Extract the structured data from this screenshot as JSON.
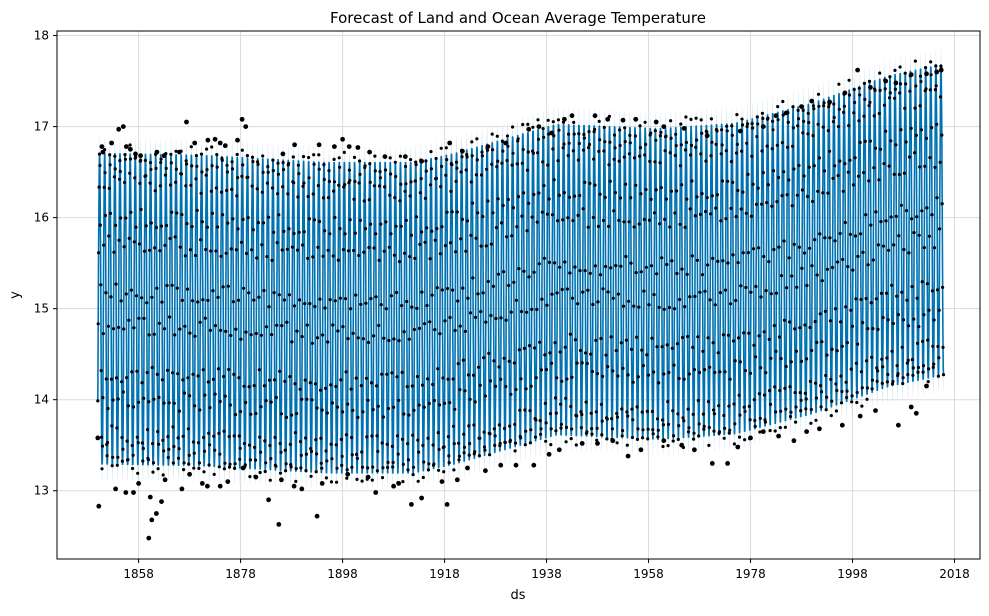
{
  "chart_data": {
    "type": "line",
    "title": "Forecast of Land and Ocean Average Temperature",
    "xlabel": "ds",
    "ylabel": "y",
    "x_range": [
      1842,
      2023
    ],
    "ylim": [
      12.25,
      18.05
    ],
    "x_ticks": [
      {
        "value": 1858,
        "label": "1858"
      },
      {
        "value": 1878,
        "label": "1878"
      },
      {
        "value": 1898,
        "label": "1898"
      },
      {
        "value": 1918,
        "label": "1918"
      },
      {
        "value": 1938,
        "label": "1938"
      },
      {
        "value": 1958,
        "label": "1958"
      },
      {
        "value": 1978,
        "label": "1978"
      },
      {
        "value": 1998,
        "label": "1998"
      },
      {
        "value": 2018,
        "label": "2018"
      }
    ],
    "y_ticks": [
      {
        "value": 13,
        "label": "13"
      },
      {
        "value": 14,
        "label": "14"
      },
      {
        "value": 15,
        "label": "15"
      },
      {
        "value": 16,
        "label": "16"
      },
      {
        "value": 17,
        "label": "17"
      },
      {
        "value": 18,
        "label": "18"
      }
    ],
    "grid": true,
    "time_span": {
      "start": 1850.0,
      "end": 2015.9
    },
    "series": [
      {
        "kind": "forecast",
        "color": "#0072B2",
        "trend": [
          [
            1850,
            15.0
          ],
          [
            1870,
            14.98
          ],
          [
            1895,
            14.9
          ],
          [
            1912,
            14.9
          ],
          [
            1920,
            15.0
          ],
          [
            1940,
            15.32
          ],
          [
            1960,
            15.27
          ],
          [
            1975,
            15.33
          ],
          [
            1990,
            15.55
          ],
          [
            2005,
            15.85
          ],
          [
            2015.9,
            15.98
          ]
        ],
        "seasonal_amplitude": 1.72
      },
      {
        "kind": "uncertainty-interval",
        "color": "#0072B2",
        "opacity": 0.2,
        "half_width": 0.18
      },
      {
        "kind": "observed",
        "color": "#000000",
        "high_outliers": [
          [
            1850.8,
            16.78
          ],
          [
            1851.0,
            16.72
          ],
          [
            1852.7,
            16.82
          ],
          [
            1854.1,
            16.97
          ],
          [
            1855.0,
            17.0
          ],
          [
            1855.6,
            16.78
          ],
          [
            1856.4,
            16.75
          ],
          [
            1857.4,
            16.7
          ],
          [
            1858.4,
            16.68
          ],
          [
            1861.6,
            16.72
          ],
          [
            1863.0,
            16.68
          ],
          [
            1866.0,
            16.72
          ],
          [
            1867.4,
            17.05
          ],
          [
            1869.0,
            16.82
          ],
          [
            1871.6,
            16.85
          ],
          [
            1873.0,
            16.86
          ],
          [
            1874.0,
            16.82
          ],
          [
            1875.0,
            16.79
          ],
          [
            1877.4,
            16.85
          ],
          [
            1878.3,
            17.08
          ],
          [
            1879.0,
            17.0
          ],
          [
            1886.3,
            16.7
          ],
          [
            1888.6,
            16.8
          ],
          [
            1893.4,
            16.8
          ],
          [
            1896.4,
            16.78
          ],
          [
            1898.0,
            16.86
          ],
          [
            1899.3,
            16.78
          ],
          [
            1901.0,
            16.77
          ],
          [
            1903.3,
            16.72
          ],
          [
            1906.3,
            16.67
          ],
          [
            1910.3,
            16.67
          ],
          [
            1913.5,
            16.62
          ],
          [
            1919.0,
            16.82
          ],
          [
            1921.5,
            16.73
          ],
          [
            1926.5,
            16.78
          ],
          [
            1930.0,
            16.82
          ],
          [
            1934.5,
            16.97
          ],
          [
            1936.5,
            17.0
          ],
          [
            1939.0,
            16.93
          ],
          [
            1941.5,
            17.08
          ],
          [
            1943.0,
            17.12
          ],
          [
            1947.5,
            17.12
          ],
          [
            1950.0,
            17.08
          ],
          [
            1953.0,
            17.07
          ],
          [
            1955.5,
            17.08
          ],
          [
            1959.5,
            17.05
          ],
          [
            1961.0,
            17.0
          ],
          [
            1965.0,
            16.98
          ],
          [
            1969.5,
            16.9
          ],
          [
            1976.0,
            16.95
          ],
          [
            1980.5,
            17.0
          ],
          [
            1983.0,
            17.12
          ],
          [
            1985.0,
            17.15
          ],
          [
            1988.0,
            17.22
          ],
          [
            1990.0,
            17.28
          ],
          [
            1993.5,
            17.27
          ],
          [
            1996.5,
            17.37
          ],
          [
            1999.0,
            17.62
          ],
          [
            2001.5,
            17.43
          ],
          [
            2004.5,
            17.5
          ],
          [
            2006.5,
            17.48
          ],
          [
            2009.5,
            17.57
          ],
          [
            2012.5,
            17.58
          ],
          [
            2014.5,
            17.6
          ],
          [
            2015.4,
            17.62
          ]
        ],
        "low_outliers": [
          [
            1850.0,
            13.58
          ],
          [
            1850.2,
            12.83
          ],
          [
            1853.5,
            13.02
          ],
          [
            1855.5,
            12.98
          ],
          [
            1857.0,
            12.98
          ],
          [
            1858.0,
            13.08
          ],
          [
            1860.0,
            12.48
          ],
          [
            1860.3,
            12.93
          ],
          [
            1860.6,
            12.68
          ],
          [
            1861.5,
            12.75
          ],
          [
            1862.5,
            12.88
          ],
          [
            1863.2,
            13.12
          ],
          [
            1866.5,
            13.02
          ],
          [
            1868.0,
            13.18
          ],
          [
            1870.5,
            13.08
          ],
          [
            1871.5,
            13.05
          ],
          [
            1874.0,
            13.05
          ],
          [
            1875.5,
            13.1
          ],
          [
            1878.5,
            13.25
          ],
          [
            1881.0,
            13.15
          ],
          [
            1883.5,
            12.9
          ],
          [
            1885.5,
            12.63
          ],
          [
            1886.0,
            13.12
          ],
          [
            1888.5,
            13.05
          ],
          [
            1890.0,
            13.02
          ],
          [
            1893.0,
            12.72
          ],
          [
            1894.0,
            13.08
          ],
          [
            1899.0,
            13.18
          ],
          [
            1903.0,
            13.15
          ],
          [
            1904.5,
            12.98
          ],
          [
            1908.0,
            13.05
          ],
          [
            1909.0,
            13.08
          ],
          [
            1911.5,
            12.85
          ],
          [
            1913.5,
            12.92
          ],
          [
            1917.5,
            13.1
          ],
          [
            1918.5,
            12.85
          ],
          [
            1920.5,
            13.12
          ],
          [
            1922.5,
            13.25
          ],
          [
            1926.0,
            13.22
          ],
          [
            1929.0,
            13.28
          ],
          [
            1932.0,
            13.28
          ],
          [
            1935.5,
            13.28
          ],
          [
            1938.5,
            13.4
          ],
          [
            1940.5,
            13.45
          ],
          [
            1945.0,
            13.52
          ],
          [
            1948.0,
            13.52
          ],
          [
            1951.0,
            13.55
          ],
          [
            1954.0,
            13.38
          ],
          [
            1956.5,
            13.45
          ],
          [
            1961.0,
            13.55
          ],
          [
            1964.5,
            13.5
          ],
          [
            1967.0,
            13.45
          ],
          [
            1970.5,
            13.3
          ],
          [
            1973.5,
            13.3
          ],
          [
            1975.5,
            13.48
          ],
          [
            1978.0,
            13.58
          ],
          [
            1980.5,
            13.65
          ],
          [
            1983.5,
            13.6
          ],
          [
            1986.5,
            13.55
          ],
          [
            1989.0,
            13.65
          ],
          [
            1991.5,
            13.68
          ],
          [
            1996.0,
            13.72
          ],
          [
            1999.5,
            13.82
          ],
          [
            2002.5,
            13.88
          ],
          [
            2007.0,
            13.72
          ],
          [
            2009.5,
            13.92
          ],
          [
            2010.5,
            13.85
          ],
          [
            2012.5,
            14.15
          ]
        ]
      }
    ]
  }
}
